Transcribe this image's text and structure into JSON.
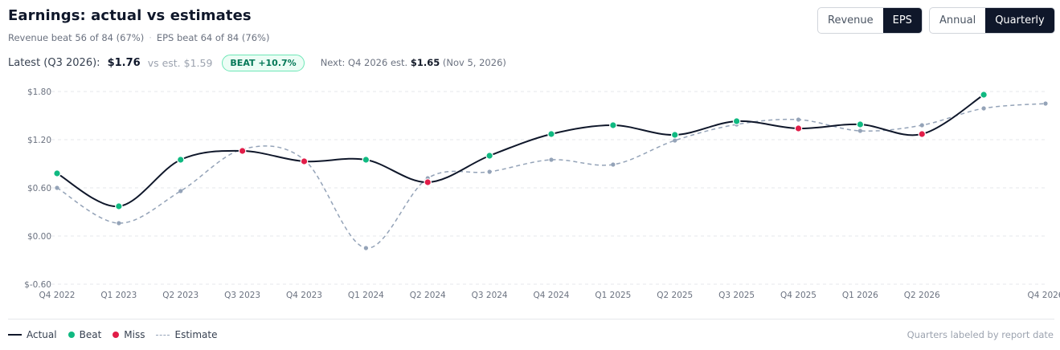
{
  "header": {
    "title": "Earnings: actual vs estimates",
    "subtitle_revenue": "Revenue beat 56 of 84 (67%)",
    "subtitle_sep": "·",
    "subtitle_eps": "EPS beat 64 of 84 (76%)"
  },
  "latest": {
    "label": "Latest (Q3 2026):",
    "value": "$1.76",
    "vs_est": "vs est. $1.59",
    "badge": "BEAT +10.7%",
    "next_prefix": "Next: Q4 2026 est.",
    "next_value": "$1.65",
    "next_date": "(Nov 5, 2026)"
  },
  "controls": {
    "metric": {
      "options": [
        "Revenue",
        "EPS"
      ],
      "selected": "EPS"
    },
    "period": {
      "options": [
        "Annual",
        "Quarterly"
      ],
      "selected": "Quarterly"
    }
  },
  "colors": {
    "actual": "#0f172a",
    "beat": "#10b981",
    "miss": "#e11d48",
    "estimate": "#94a3b8",
    "grid": "#e5e7eb"
  },
  "chart_data": {
    "type": "line",
    "categories": [
      "Q4 2022",
      "Q1 2023",
      "Q2 2023",
      "Q3 2023",
      "Q4 2023",
      "Q1 2024",
      "Q2 2024",
      "Q3 2024",
      "Q4 2024",
      "Q1 2025",
      "Q2 2025",
      "Q3 2025",
      "Q4 2025",
      "Q1 2026",
      "Q2 2026",
      "Q3 2026",
      "Q4 2026"
    ],
    "x_tick_labels": [
      "Q4 2022",
      "Q1 2023",
      "Q2 2023",
      "Q3 2023",
      "Q4 2023",
      "Q1 2024",
      "Q2 2024",
      "Q3 2024",
      "Q4 2024",
      "Q1 2025",
      "Q2 2025",
      "Q3 2025",
      "Q4 2025",
      "Q1 2026",
      "Q2 2026",
      "",
      "Q4 2026"
    ],
    "y_ticks": [
      "$1.80",
      "$1.20",
      "$0.60",
      "$0.00",
      "$-0.60"
    ],
    "ylim": [
      -0.6,
      1.8
    ],
    "series": [
      {
        "name": "Actual",
        "values": [
          0.78,
          0.37,
          0.95,
          1.06,
          0.93,
          0.95,
          0.67,
          1.0,
          1.27,
          1.38,
          1.26,
          1.43,
          1.34,
          1.39,
          1.27,
          1.76,
          null
        ],
        "outcome": [
          "beat",
          "beat",
          "beat",
          "miss",
          "miss",
          "beat",
          "miss",
          "beat",
          "beat",
          "beat",
          "beat",
          "beat",
          "miss",
          "beat",
          "miss",
          "beat",
          null
        ]
      },
      {
        "name": "Estimate",
        "values": [
          0.6,
          0.16,
          0.56,
          1.08,
          0.95,
          -0.15,
          0.72,
          0.8,
          0.95,
          0.89,
          1.19,
          1.39,
          1.45,
          1.31,
          1.38,
          1.59,
          1.65
        ]
      }
    ],
    "grid": true,
    "legend_position": "bottom-left",
    "legend": [
      "Actual",
      "Beat",
      "Miss",
      "Estimate"
    ]
  },
  "footer": {
    "note": "Quarters labeled by report date"
  }
}
